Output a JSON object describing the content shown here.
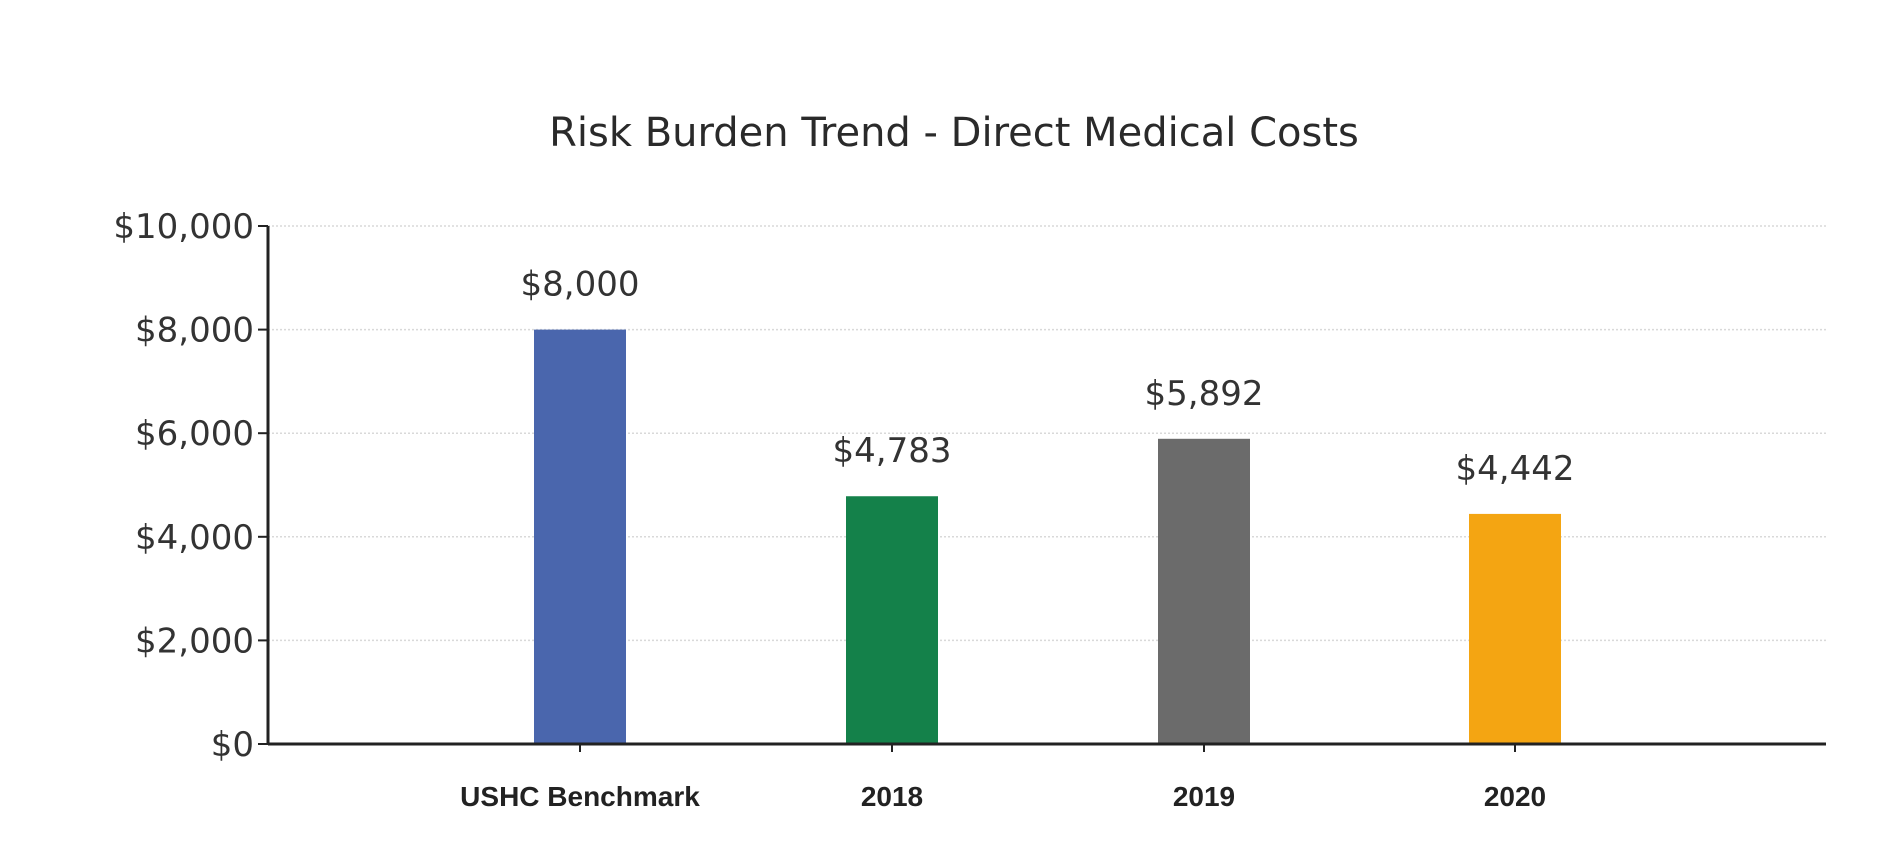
{
  "chart_data": {
    "type": "bar",
    "title": "Risk Burden Trend - Direct Medical Costs",
    "xlabel": "",
    "ylabel": "",
    "categories": [
      "USHC Benchmark",
      "2018",
      "2019",
      "2020"
    ],
    "values": [
      8000,
      4783,
      5892,
      4442
    ],
    "data_labels": [
      "$8,000",
      "$4,783",
      "$5,892",
      "$4,442"
    ],
    "colors": [
      "#4a66ad",
      "#14814a",
      "#6b6b6b",
      "#f4a512"
    ],
    "ylim": [
      0,
      10000
    ],
    "yticks": [
      0,
      2000,
      4000,
      6000,
      8000,
      10000
    ],
    "ytick_labels": [
      "$0",
      "$2,000",
      "$4,000",
      "$6,000",
      "$8,000",
      "$10,000"
    ],
    "grid": true,
    "legend": "none"
  }
}
